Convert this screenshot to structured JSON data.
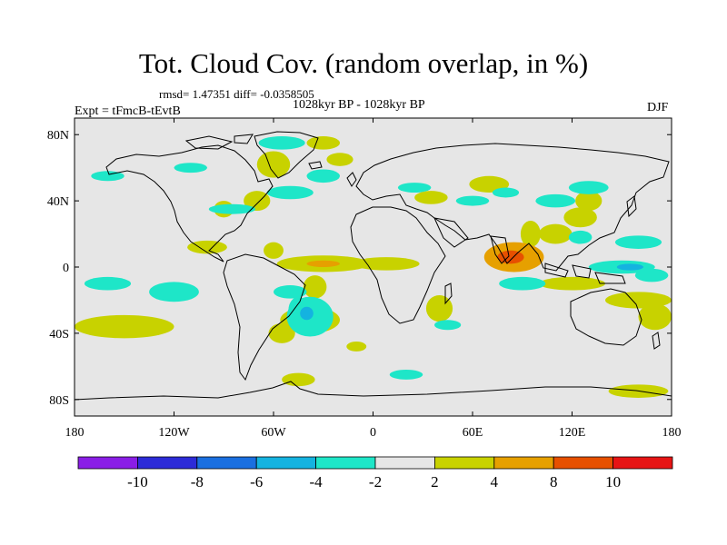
{
  "chart_data": {
    "type": "heatmap",
    "title": "Tot. Cloud Cov. (random overlap, in %)",
    "stats": "rmsd= 1.47351 diff= -0.0358505",
    "period": "1028kyr BP - 1028kyr BP",
    "experiment": "Expt = tFmcB-tEvtB",
    "season": "DJF",
    "xlim": [
      -180,
      180
    ],
    "ylim": [
      -90,
      90
    ],
    "x_ticks": [
      {
        "value": -180,
        "label": "180"
      },
      {
        "value": -120,
        "label": "120W"
      },
      {
        "value": -60,
        "label": "60W"
      },
      {
        "value": 0,
        "label": "0"
      },
      {
        "value": 60,
        "label": "60E"
      },
      {
        "value": 120,
        "label": "120E"
      },
      {
        "value": 180,
        "label": "180"
      }
    ],
    "y_ticks": [
      {
        "value": 80,
        "label": "80N"
      },
      {
        "value": 40,
        "label": "40N"
      },
      {
        "value": 0,
        "label": "0"
      },
      {
        "value": -40,
        "label": "40S"
      },
      {
        "value": -80,
        "label": "80S"
      }
    ],
    "colorbar": {
      "colors": [
        "#8a1ee6",
        "#2d2bd8",
        "#1a6fe0",
        "#14b3e0",
        "#1ee6c8",
        "#e6e6e6",
        "#c8d200",
        "#e6a000",
        "#e65000",
        "#e61414"
      ],
      "labels": [
        "-10",
        "-8",
        "-6",
        "-4",
        "-2",
        "2",
        "4",
        "8",
        "10"
      ]
    },
    "regions": [
      {
        "lon": 85,
        "lat": 6,
        "rlon": 18,
        "rlat": 9,
        "level": 2
      },
      {
        "lon": 83,
        "lat": 6,
        "rlon": 8,
        "rlat": 4,
        "level": 3
      },
      {
        "lon": 95,
        "lat": 20,
        "rlon": 6,
        "rlat": 8,
        "level": 1
      },
      {
        "lon": 110,
        "lat": 20,
        "rlon": 10,
        "rlat": 6,
        "level": 1
      },
      {
        "lon": 125,
        "lat": 30,
        "rlon": 10,
        "rlat": 6,
        "level": 1
      },
      {
        "lon": 130,
        "lat": 40,
        "rlon": 8,
        "rlat": 6,
        "level": 1
      },
      {
        "lon": 120,
        "lat": -10,
        "rlon": 20,
        "rlat": 4,
        "level": 1
      },
      {
        "lon": 160,
        "lat": -20,
        "rlon": 20,
        "rlat": 5,
        "level": 1
      },
      {
        "lon": 170,
        "lat": -30,
        "rlon": 10,
        "rlat": 8,
        "level": 1
      },
      {
        "lon": -100,
        "lat": 12,
        "rlon": 12,
        "rlat": 4,
        "level": 1
      },
      {
        "lon": -30,
        "lat": 2,
        "rlon": 28,
        "rlat": 5,
        "level": 1
      },
      {
        "lon": -30,
        "lat": 2,
        "rlon": 10,
        "rlat": 2,
        "level": 2
      },
      {
        "lon": 8,
        "lat": 2,
        "rlon": 20,
        "rlat": 4,
        "level": 1
      },
      {
        "lon": -35,
        "lat": -12,
        "rlon": 7,
        "rlat": 7,
        "level": 1
      },
      {
        "lon": -38,
        "lat": -32,
        "rlon": 18,
        "rlat": 8,
        "level": 1
      },
      {
        "lon": -150,
        "lat": -36,
        "rlon": 30,
        "rlat": 7,
        "level": 1
      },
      {
        "lon": -55,
        "lat": -40,
        "rlon": 8,
        "rlat": 6,
        "level": 1
      },
      {
        "lon": 40,
        "lat": -25,
        "rlon": 8,
        "rlat": 8,
        "level": 1
      },
      {
        "lon": 70,
        "lat": 50,
        "rlon": 12,
        "rlat": 5,
        "level": 1
      },
      {
        "lon": 35,
        "lat": 42,
        "rlon": 10,
        "rlat": 4,
        "level": 1
      },
      {
        "lon": -60,
        "lat": 62,
        "rlon": 10,
        "rlat": 8,
        "level": 1
      },
      {
        "lon": -30,
        "lat": 75,
        "rlon": 10,
        "rlat": 4,
        "level": 1
      },
      {
        "lon": -20,
        "lat": 65,
        "rlon": 8,
        "rlat": 4,
        "level": 1
      },
      {
        "lon": -70,
        "lat": 40,
        "rlon": 8,
        "rlat": 6,
        "level": 1
      },
      {
        "lon": 160,
        "lat": -75,
        "rlon": 18,
        "rlat": 4,
        "level": 1
      },
      {
        "lon": -45,
        "lat": -68,
        "rlon": 10,
        "rlat": 4,
        "level": 1
      },
      {
        "lon": -10,
        "lat": -48,
        "rlon": 6,
        "rlat": 3,
        "level": 1
      },
      {
        "lon": -60,
        "lat": 10,
        "rlon": 6,
        "rlat": 5,
        "level": 1
      },
      {
        "lon": -90,
        "lat": 35,
        "rlon": 6,
        "rlat": 5,
        "level": 1
      },
      {
        "lon": -45,
        "lat": -26,
        "rlon": 6,
        "rlat": 8,
        "level": -1
      },
      {
        "lon": -38,
        "lat": -30,
        "rlon": 14,
        "rlat": 12,
        "level": -1
      },
      {
        "lon": -40,
        "lat": -28,
        "rlon": 4,
        "rlat": 4,
        "level": -2
      },
      {
        "lon": -160,
        "lat": -10,
        "rlon": 14,
        "rlat": 4,
        "level": -1
      },
      {
        "lon": -120,
        "lat": -15,
        "rlon": 15,
        "rlat": 6,
        "level": -1
      },
      {
        "lon": -50,
        "lat": -15,
        "rlon": 10,
        "rlat": 4,
        "level": -1
      },
      {
        "lon": -85,
        "lat": 35,
        "rlon": 14,
        "rlat": 3,
        "level": -1
      },
      {
        "lon": -50,
        "lat": 45,
        "rlon": 14,
        "rlat": 4,
        "level": -1
      },
      {
        "lon": -55,
        "lat": 75,
        "rlon": 14,
        "rlat": 4,
        "level": -1
      },
      {
        "lon": -30,
        "lat": 55,
        "rlon": 10,
        "rlat": 4,
        "level": -1
      },
      {
        "lon": 25,
        "lat": 48,
        "rlon": 10,
        "rlat": 3,
        "level": -1
      },
      {
        "lon": 60,
        "lat": 40,
        "rlon": 10,
        "rlat": 3,
        "level": -1
      },
      {
        "lon": 80,
        "lat": 45,
        "rlon": 8,
        "rlat": 3,
        "level": -1
      },
      {
        "lon": 110,
        "lat": 40,
        "rlon": 12,
        "rlat": 4,
        "level": -1
      },
      {
        "lon": 130,
        "lat": 48,
        "rlon": 12,
        "rlat": 4,
        "level": -1
      },
      {
        "lon": 150,
        "lat": 0,
        "rlon": 20,
        "rlat": 4,
        "level": -1
      },
      {
        "lon": 155,
        "lat": 0,
        "rlon": 8,
        "rlat": 2,
        "level": -2
      },
      {
        "lon": 168,
        "lat": -5,
        "rlon": 10,
        "rlat": 4,
        "level": -1
      },
      {
        "lon": 90,
        "lat": -10,
        "rlon": 14,
        "rlat": 4,
        "level": -1
      },
      {
        "lon": 160,
        "lat": 15,
        "rlon": 14,
        "rlat": 4,
        "level": -1
      },
      {
        "lon": 125,
        "lat": 18,
        "rlon": 7,
        "rlat": 4,
        "level": -1
      },
      {
        "lon": -110,
        "lat": 60,
        "rlon": 10,
        "rlat": 3,
        "level": -1
      },
      {
        "lon": -160,
        "lat": 55,
        "rlon": 10,
        "rlat": 3,
        "level": -1
      },
      {
        "lon": 20,
        "lat": -65,
        "rlon": 10,
        "rlat": 3,
        "level": -1
      },
      {
        "lon": 45,
        "lat": -35,
        "rlon": 8,
        "rlat": 3,
        "level": -1
      }
    ]
  }
}
